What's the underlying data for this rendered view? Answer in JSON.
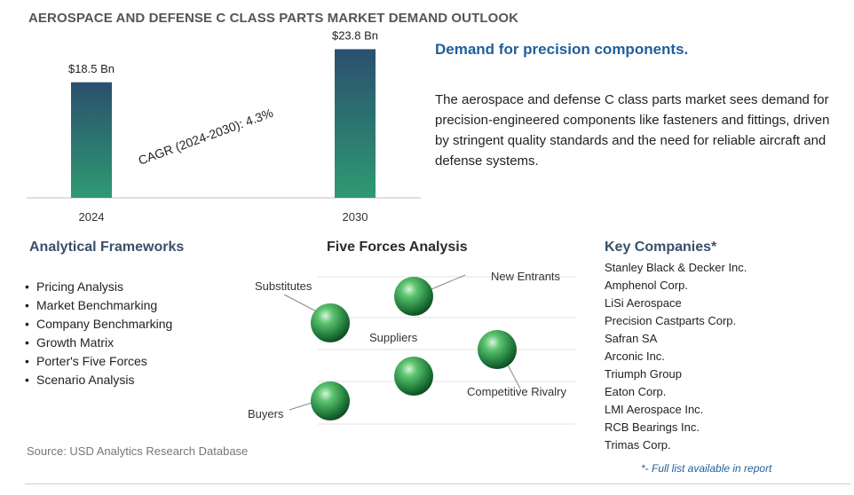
{
  "page": {
    "title": "AEROSPACE AND DEFENSE C CLASS PARTS MARKET DEMAND OUTLOOK",
    "headline": "Demand for precision components.",
    "description": "The aerospace and defense C class parts market sees demand for precision-engineered components like fasteners and fittings, driven by stringent quality standards and the need for reliable aircraft and defense systems.",
    "source": "Source: USD Analytics Research Database",
    "footnote": "*- Full list available in report"
  },
  "chart_data": {
    "type": "bar",
    "categories": [
      "2024",
      "2030"
    ],
    "values": [
      18.5,
      23.8
    ],
    "data_labels": [
      "$18.5 Bn",
      "$23.8 Bn"
    ],
    "annotation": "CAGR (2024-2030):  4.3%",
    "colors": {
      "bar_top": "#2b4f6e",
      "bar_bottom": "#2e9a72"
    },
    "ylim": [
      0,
      25
    ]
  },
  "frameworks": {
    "heading": "Analytical Frameworks",
    "items": [
      "Pricing Analysis",
      "Market Benchmarking",
      "Company Benchmarking",
      "Growth Matrix",
      "Porter's Five Forces",
      "Scenario Analysis"
    ]
  },
  "five_forces": {
    "heading": "Five Forces Analysis",
    "labels": {
      "substitutes": "Substitutes",
      "new_entrants": "New Entrants",
      "suppliers": "Suppliers",
      "competitive_rivalry": "Competitive Rivalry",
      "buyers": "Buyers"
    },
    "sphere_color": "#2e9a50"
  },
  "companies": {
    "heading": "Key Companies*",
    "items": [
      "Stanley Black & Decker Inc.",
      "Amphenol Corp.",
      "LiSi Aerospace",
      "Precision Castparts Corp.",
      "Safran SA",
      "Arconic Inc.",
      "Triumph Group",
      "Eaton Corp.",
      "LMI Aerospace Inc.",
      "RCB Bearings Inc.",
      "Trimas Corp."
    ]
  }
}
